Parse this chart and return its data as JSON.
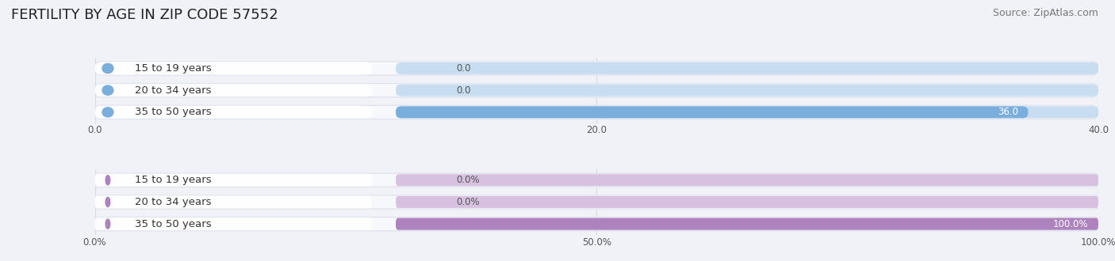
{
  "title": "FERTILITY BY AGE IN ZIP CODE 57552",
  "source": "Source: ZipAtlas.com",
  "top_chart": {
    "categories": [
      "15 to 19 years",
      "20 to 34 years",
      "35 to 50 years"
    ],
    "values": [
      0.0,
      0.0,
      36.0
    ],
    "bar_color_full": "#7aaedc",
    "bar_color_empty": "#c8ddf0",
    "bar_bg_white": "#ffffff",
    "xlim": [
      0,
      40
    ],
    "xticks": [
      0.0,
      20.0,
      40.0
    ],
    "label_inside_color": "#ffffff",
    "label_outside_color": "#555555",
    "value_zero_color": "#555555"
  },
  "bottom_chart": {
    "categories": [
      "15 to 19 years",
      "20 to 34 years",
      "35 to 50 years"
    ],
    "values": [
      0.0,
      0.0,
      100.0
    ],
    "bar_color_full": "#ae82bc",
    "bar_color_empty": "#d8c0e0",
    "bar_bg_white": "#ffffff",
    "xlim": [
      0,
      100
    ],
    "xticks": [
      0.0,
      50.0,
      100.0
    ],
    "xtick_labels": [
      "0.0%",
      "50.0%",
      "100.0%"
    ],
    "label_inside_color": "#ffffff",
    "label_outside_color": "#555555"
  },
  "fig_bg_color": "#f0f2f8",
  "axes_bg_color": "#f0f2f8",
  "title_fontsize": 13,
  "source_fontsize": 9,
  "label_fontsize": 8.5,
  "tick_fontsize": 8.5,
  "category_fontsize": 9.5,
  "grid_color": "#d8dae0"
}
